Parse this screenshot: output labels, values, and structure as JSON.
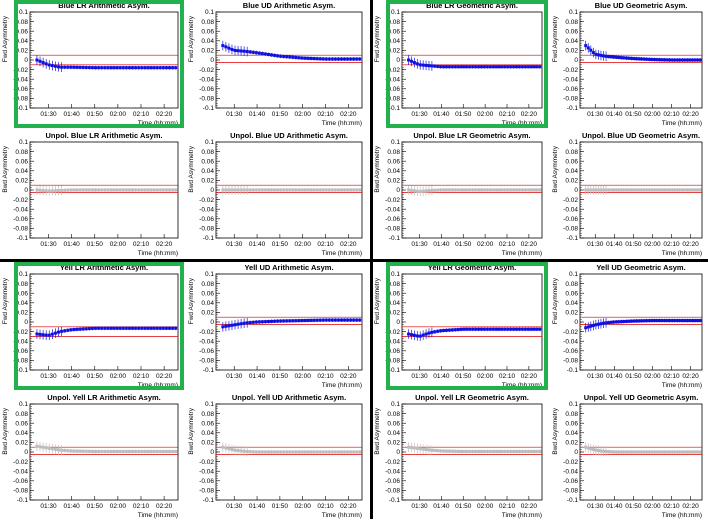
{
  "colors": {
    "polarized": "#1010e0",
    "unpolarized": "#bdbdbd",
    "band": "#e00000",
    "highlight": "#22b14c"
  },
  "charts": [
    {
      "title": "Blue LR Arithmetic Asym.",
      "ylabel": "Fwd Asymmetry",
      "xlabel": "Time (hh:mm)",
      "series": "pol",
      "band": [
        -0.01,
        0.01
      ],
      "highlight": true
    },
    {
      "title": "Blue UD Arithmetic Asym.",
      "ylabel": "Fwd Asymmetry",
      "xlabel": "Time (hh:mm)",
      "series": "pol",
      "band": [
        -0.005,
        0.01
      ],
      "highlight": false
    },
    {
      "title": "Blue LR Geometric Asym.",
      "ylabel": "Fwd Asymmetry",
      "xlabel": "Time (hh:mm)",
      "series": "pol",
      "band": [
        -0.01,
        0.01
      ],
      "highlight": true
    },
    {
      "title": "Blue UD Geometric Asym.",
      "ylabel": "Fwd Asymmetry",
      "xlabel": "Time (hh:mm)",
      "series": "pol",
      "band": [
        -0.005,
        0.01
      ],
      "highlight": false
    },
    {
      "title": "Unpol. Blue LR Arithmetic Asym.",
      "ylabel": "Bwd Asymmetry",
      "xlabel": "Time (hh:mm)",
      "series": "unpol",
      "band": [
        -0.005,
        0.01
      ],
      "highlight": false
    },
    {
      "title": "Unpol. Blue UD Arithmetic Asym.",
      "ylabel": "Bwd Asymmetry",
      "xlabel": "Time (hh:mm)",
      "series": "unpol",
      "band": [
        -0.005,
        0.01
      ],
      "highlight": false
    },
    {
      "title": "Unpol. Blue LR Geometric Asym.",
      "ylabel": "Bwd Asymmetry",
      "xlabel": "Time (hh:mm)",
      "series": "unpol",
      "band": [
        -0.005,
        0.01
      ],
      "highlight": false
    },
    {
      "title": "Unpol. Blue UD Geometric Asym.",
      "ylabel": "Bwd Asymmetry",
      "xlabel": "Time (hh:mm)",
      "series": "unpol",
      "band": [
        -0.005,
        0.01
      ],
      "highlight": false
    },
    {
      "title": "Yell LR Arithmetic Asym.",
      "ylabel": "Fwd Asymmetry",
      "xlabel": "Time (hh:mm)",
      "series": "pol",
      "band": [
        -0.03,
        -0.01
      ],
      "highlight": true
    },
    {
      "title": "Yell UD Arithmetic Asym.",
      "ylabel": "Fwd Asymmetry",
      "xlabel": "Time (hh:mm)",
      "series": "pol",
      "band": [
        -0.005,
        0.01
      ],
      "highlight": false
    },
    {
      "title": "Yell LR Geometric Asym.",
      "ylabel": "Fwd Asymmetry",
      "xlabel": "Time (hh:mm)",
      "series": "pol",
      "band": [
        -0.03,
        -0.01
      ],
      "highlight": true
    },
    {
      "title": "Yell UD Geometric Asym.",
      "ylabel": "Fwd Asymmetry",
      "xlabel": "Time (hh:mm)",
      "series": "pol",
      "band": [
        -0.005,
        0.01
      ],
      "highlight": false
    },
    {
      "title": "Unpol. Yell LR Arithmetic Asym.",
      "ylabel": "Bwd Asymmetry",
      "xlabel": "Time (hh:mm)",
      "series": "unpol",
      "band": [
        -0.005,
        0.01
      ],
      "highlight": false
    },
    {
      "title": "Unpol. Yell UD Arithmetic Asym.",
      "ylabel": "Bwd Asymmetry",
      "xlabel": "Time (hh:mm)",
      "series": "unpol",
      "band": [
        -0.005,
        0.01
      ],
      "highlight": false
    },
    {
      "title": "Unpol. Yell LR Geometric Asym.",
      "ylabel": "Bwd Asymmetry",
      "xlabel": "Time (hh:mm)",
      "series": "unpol",
      "band": [
        -0.005,
        0.01
      ],
      "highlight": false
    },
    {
      "title": "Unpol. Yell UD Geometric Asym.",
      "ylabel": "Bwd Asymmetry",
      "xlabel": "Time (hh:mm)",
      "series": "unpol",
      "band": [
        -0.005,
        0.01
      ],
      "highlight": false
    }
  ],
  "axes": {
    "ylim": [
      -0.1,
      0.1
    ],
    "yticks": [
      "0.1",
      "0.08",
      "0.06",
      "0.04",
      "0.02",
      "0",
      "-0.02",
      "-0.04",
      "-0.06",
      "-0.08",
      "-0.1"
    ],
    "xticks": [
      "01:30",
      "01:40",
      "01:50",
      "02:00",
      "02:10",
      "02:20"
    ]
  },
  "chart_data": {
    "type": "scatter",
    "x_unit": "time (hh:mm)",
    "series_by_panel": [
      {
        "panel": "Blue LR Arithmetic Asym.",
        "x": [
          "01:25",
          "01:30",
          "01:35",
          "01:40",
          "01:50",
          "02:00",
          "02:10",
          "02:20",
          "02:25"
        ],
        "y": [
          0.0,
          -0.01,
          -0.015,
          -0.015,
          -0.016,
          -0.016,
          -0.016,
          -0.016,
          -0.016
        ]
      },
      {
        "panel": "Blue UD Arithmetic Asym.",
        "x": [
          "01:25",
          "01:30",
          "01:35",
          "01:40",
          "01:50",
          "02:00",
          "02:10",
          "02:20",
          "02:25"
        ],
        "y": [
          0.03,
          0.02,
          0.018,
          0.015,
          0.008,
          0.004,
          0.002,
          0.002,
          0.002
        ]
      },
      {
        "panel": "Blue LR Geometric Asym.",
        "x": [
          "01:25",
          "01:30",
          "01:35",
          "01:40",
          "01:50",
          "02:00",
          "02:10",
          "02:20",
          "02:25"
        ],
        "y": [
          0.0,
          -0.01,
          -0.012,
          -0.014,
          -0.014,
          -0.014,
          -0.014,
          -0.014,
          -0.014
        ]
      },
      {
        "panel": "Blue UD Geometric Asym.",
        "x": [
          "01:25",
          "01:30",
          "01:35",
          "01:40",
          "01:50",
          "02:00",
          "02:10",
          "02:20",
          "02:25"
        ],
        "y": [
          0.03,
          0.012,
          0.008,
          0.006,
          0.003,
          0.001,
          0.0,
          0.0,
          0.0
        ]
      },
      {
        "panel": "Unpol. Blue LR Arithmetic Asym.",
        "x": [
          "01:25",
          "01:30",
          "01:35",
          "01:40",
          "01:50",
          "02:00",
          "02:10",
          "02:20",
          "02:25"
        ],
        "y": [
          0.0,
          -0.002,
          -0.001,
          0.0,
          0.0,
          0.0,
          0.0,
          0.0,
          0.0
        ]
      },
      {
        "panel": "Unpol. Blue UD Arithmetic Asym.",
        "x": [
          "01:25",
          "01:30",
          "01:35",
          "01:40",
          "01:50",
          "02:00",
          "02:10",
          "02:20",
          "02:25"
        ],
        "y": [
          0.0,
          0.0,
          0.0,
          0.0,
          0.0,
          0.0,
          0.0,
          0.0,
          0.0
        ]
      },
      {
        "panel": "Unpol. Blue LR Geometric Asym.",
        "x": [
          "01:25",
          "01:30",
          "01:35",
          "01:40",
          "01:50",
          "02:00",
          "02:10",
          "02:20",
          "02:25"
        ],
        "y": [
          0.0,
          -0.003,
          -0.001,
          0.0,
          0.0,
          0.0,
          0.0,
          0.0,
          0.0
        ]
      },
      {
        "panel": "Unpol. Blue UD Geometric Asym.",
        "x": [
          "01:25",
          "01:30",
          "01:35",
          "01:40",
          "01:50",
          "02:00",
          "02:10",
          "02:20",
          "02:25"
        ],
        "y": [
          0.0,
          0.0,
          0.0,
          0.0,
          0.0,
          0.0,
          0.0,
          0.0,
          0.0
        ]
      },
      {
        "panel": "Yell LR Arithmetic Asym.",
        "x": [
          "01:25",
          "01:30",
          "01:35",
          "01:40",
          "01:50",
          "02:00",
          "02:10",
          "02:20",
          "02:25"
        ],
        "y": [
          -0.025,
          -0.028,
          -0.02,
          -0.016,
          -0.013,
          -0.013,
          -0.013,
          -0.013,
          -0.013
        ]
      },
      {
        "panel": "Yell UD Arithmetic Asym.",
        "x": [
          "01:25",
          "01:30",
          "01:35",
          "01:40",
          "01:50",
          "02:00",
          "02:10",
          "02:20",
          "02:25"
        ],
        "y": [
          -0.01,
          -0.006,
          -0.002,
          0.0,
          0.002,
          0.003,
          0.004,
          0.004,
          0.004
        ]
      },
      {
        "panel": "Yell LR Geometric Asym.",
        "x": [
          "01:25",
          "01:30",
          "01:35",
          "01:40",
          "01:50",
          "02:00",
          "02:10",
          "02:20",
          "02:25"
        ],
        "y": [
          -0.025,
          -0.03,
          -0.022,
          -0.018,
          -0.015,
          -0.015,
          -0.015,
          -0.015,
          -0.015
        ]
      },
      {
        "panel": "Yell UD Geometric Asym.",
        "x": [
          "01:25",
          "01:30",
          "01:35",
          "01:40",
          "01:50",
          "02:00",
          "02:10",
          "02:20",
          "02:25"
        ],
        "y": [
          -0.012,
          -0.006,
          -0.002,
          0.0,
          0.002,
          0.003,
          0.003,
          0.003,
          0.003
        ]
      },
      {
        "panel": "Unpol. Yell LR Arithmetic Asym.",
        "x": [
          "01:25",
          "01:30",
          "01:35",
          "01:40",
          "01:50",
          "02:00",
          "02:10",
          "02:20",
          "02:25"
        ],
        "y": [
          0.012,
          0.008,
          0.004,
          0.002,
          0.001,
          0.001,
          0.001,
          0.001,
          0.001
        ]
      },
      {
        "panel": "Unpol. Yell UD Arithmetic Asym.",
        "x": [
          "01:25",
          "01:30",
          "01:35",
          "01:40",
          "01:50",
          "02:00",
          "02:10",
          "02:20",
          "02:25"
        ],
        "y": [
          0.01,
          0.004,
          0.001,
          0.0,
          0.0,
          0.0,
          0.0,
          0.0,
          0.0
        ]
      },
      {
        "panel": "Unpol. Yell LR Geometric Asym.",
        "x": [
          "01:25",
          "01:30",
          "01:35",
          "01:40",
          "01:50",
          "02:00",
          "02:10",
          "02:20",
          "02:25"
        ],
        "y": [
          0.01,
          0.007,
          0.004,
          0.002,
          0.001,
          0.001,
          0.001,
          0.001,
          0.001
        ]
      },
      {
        "panel": "Unpol. Yell UD Geometric Asym.",
        "x": [
          "01:25",
          "01:30",
          "01:35",
          "01:40",
          "01:50",
          "02:00",
          "02:10",
          "02:20",
          "02:25"
        ],
        "y": [
          0.01,
          0.004,
          0.001,
          0.0,
          0.0,
          0.0,
          0.0,
          0.0,
          0.0
        ]
      }
    ],
    "ylim": [
      -0.1,
      0.1
    ],
    "grid": false,
    "legend": "none"
  }
}
